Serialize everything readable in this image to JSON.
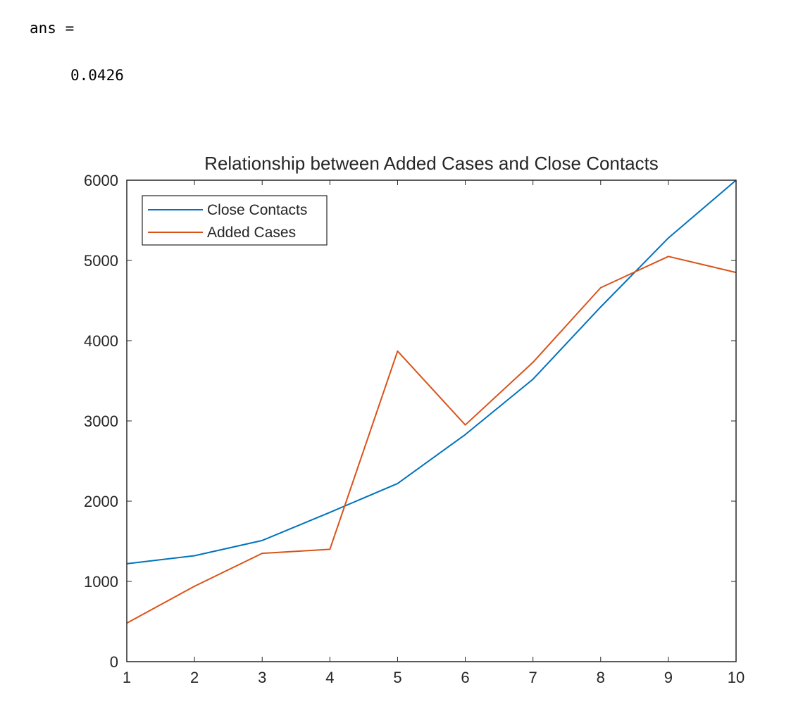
{
  "console": {
    "prompt_line": "ans =",
    "value_line": "0.0426"
  },
  "chart_data": {
    "type": "line",
    "title": "Relationship between Added Cases and Close Contacts",
    "xlabel": "",
    "ylabel": "",
    "x": [
      1,
      2,
      3,
      4,
      5,
      6,
      7,
      8,
      9,
      10
    ],
    "xlim": [
      1,
      10
    ],
    "ylim": [
      0,
      6000
    ],
    "xticks": [
      1,
      2,
      3,
      4,
      5,
      6,
      7,
      8,
      9,
      10
    ],
    "yticks": [
      0,
      1000,
      2000,
      3000,
      4000,
      5000,
      6000
    ],
    "grid": false,
    "legend_location": "top-left",
    "series": [
      {
        "name": "Close Contacts",
        "color": "#0072BD",
        "values": [
          1220,
          1320,
          1510,
          1860,
          2220,
          2830,
          3520,
          4420,
          5280,
          6000
        ]
      },
      {
        "name": "Added Cases",
        "color": "#D95319",
        "values": [
          480,
          940,
          1350,
          1400,
          3870,
          2950,
          3730,
          4660,
          5050,
          4850
        ]
      }
    ]
  }
}
